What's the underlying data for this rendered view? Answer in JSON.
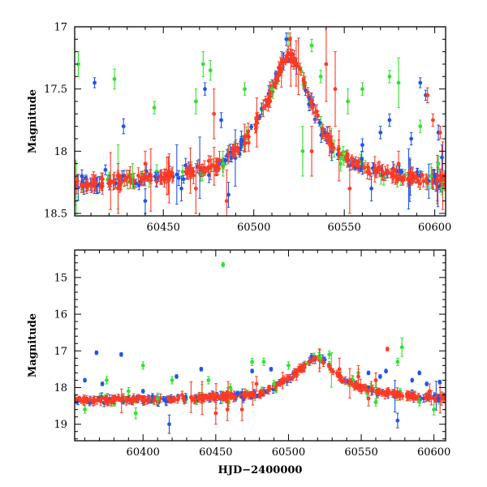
{
  "colors": {
    "green": "#33e033",
    "blue": "#1f55e6",
    "red": "#ff3a24"
  },
  "chart_data": [
    {
      "type": "scatter",
      "title": "",
      "xlabel": "",
      "ylabel": "Magnitude",
      "xlim": [
        60401,
        60606
      ],
      "ylim": [
        18.52,
        17.0
      ],
      "y_inverted": true,
      "xticks": [
        60450,
        60500,
        60550,
        60600
      ],
      "xtick_labels": [
        "60450",
        "60500",
        "60550",
        "60600"
      ],
      "yticks": [
        17,
        17.5,
        18,
        18.5
      ],
      "ytick_labels": [
        "17",
        "17.5",
        "18",
        "18.5"
      ],
      "grid": false,
      "legend": "none",
      "error_bars": true,
      "series": [
        {
          "color": "green",
          "points": [
            [
              60403,
              17.3,
              0.1
            ],
            [
              60423,
              17.42,
              0.08
            ],
            [
              60433,
              18.2,
              0.1
            ],
            [
              60445,
              17.65,
              0.05
            ],
            [
              60468,
              17.6,
              0.1
            ],
            [
              60472,
              17.3,
              0.1
            ],
            [
              60476,
              17.35,
              0.08
            ],
            [
              60483,
              18.1,
              0.1
            ],
            [
              60495,
              17.5,
              0.05
            ],
            [
              60510,
              17.5,
              0.05
            ],
            [
              60519,
              17.1,
              0.05
            ],
            [
              60527,
              18.0,
              0.2
            ],
            [
              60532,
              17.15,
              0.05
            ],
            [
              60537,
              17.4,
              0.05
            ],
            [
              60548,
              18.1,
              0.06
            ],
            [
              60552,
              17.6,
              0.1
            ],
            [
              60560,
              17.5,
              0.05
            ],
            [
              60575,
              17.4,
              0.05
            ],
            [
              60580,
              17.45,
              0.2
            ],
            [
              60592,
              17.8,
              0.05
            ],
            [
              60598,
              18.2,
              0.1
            ],
            [
              60602,
              18.1,
              0.06
            ],
            [
              60604,
              18.3,
              0.05
            ]
          ]
        },
        {
          "color": "blue",
          "points": [
            [
              60405,
              18.2,
              0.05
            ],
            [
              60412,
              17.45,
              0.04
            ],
            [
              60418,
              18.15,
              0.04
            ],
            [
              60428,
              17.8,
              0.06
            ],
            [
              60440,
              18.4,
              0.1
            ],
            [
              60460,
              18.3,
              0.1
            ],
            [
              60473,
              17.5,
              0.05
            ],
            [
              60482,
              17.75,
              0.06
            ],
            [
              60486,
              18.35,
              0.1
            ],
            [
              60518,
              17.1,
              0.05
            ],
            [
              60560,
              17.95,
              0.05
            ],
            [
              60565,
              18.3,
              0.1
            ],
            [
              60570,
              17.85,
              0.05
            ],
            [
              60575,
              17.75,
              0.05
            ],
            [
              60587,
              17.9,
              0.05
            ],
            [
              60592,
              17.45,
              0.04
            ],
            [
              60595,
              17.55,
              0.04
            ],
            [
              60600,
              18.2,
              0.05
            ],
            [
              60602,
              17.85,
              0.06
            ],
            [
              60604,
              18.05,
              0.1
            ]
          ]
        },
        {
          "color": "red",
          "points": [
            [
              60425,
              18.3,
              0.2
            ],
            [
              60440,
              18.1,
              0.1
            ],
            [
              60452,
              18.2,
              0.15
            ],
            [
              60468,
              18.3,
              0.2
            ],
            [
              60478,
              17.7,
              0.2
            ],
            [
              60485,
              18.4,
              0.25
            ],
            [
              60520,
              17.1,
              0.05
            ],
            [
              60532,
              18.0,
              0.2
            ],
            [
              60540,
              17.3,
              0.3
            ],
            [
              60545,
              17.5,
              0.3
            ],
            [
              60553,
              18.3,
              0.2
            ],
            [
              60580,
              18.1,
              0.1
            ],
            [
              60596,
              17.55,
              0.06
            ],
            [
              60599,
              17.75,
              0.05
            ],
            [
              60603,
              17.85,
              0.05
            ]
          ]
        }
      ],
      "model_curve": {
        "x": [
          60401,
          60450,
          60480,
          60490,
          60500,
          60510,
          60515,
          60520,
          60525,
          60530,
          60540,
          60550,
          60565,
          60580,
          60606
        ],
        "y": [
          18.28,
          18.2,
          18.12,
          18.0,
          17.82,
          17.52,
          17.32,
          17.22,
          17.32,
          17.55,
          17.9,
          18.05,
          18.15,
          18.2,
          18.25
        ]
      }
    },
    {
      "type": "scatter",
      "title": "",
      "xlabel": "HJD−2400000",
      "ylabel": "Magnitude",
      "xlim": [
        60353,
        60608
      ],
      "ylim": [
        19.45,
        14.25
      ],
      "y_inverted": true,
      "xticks": [
        60400,
        60450,
        60500,
        60550,
        60600
      ],
      "xtick_labels": [
        "60400",
        "60450",
        "60500",
        "60550",
        "60600"
      ],
      "yticks": [
        15,
        16,
        17,
        18,
        19
      ],
      "ytick_labels": [
        "15",
        "16",
        "17",
        "18",
        "19"
      ],
      "grid": false,
      "legend": "none",
      "error_bars": true,
      "series": [
        {
          "color": "green",
          "points": [
            [
              60360,
              18.6,
              0.1
            ],
            [
              60375,
              17.8,
              0.1
            ],
            [
              60390,
              18.1,
              0.1
            ],
            [
              60395,
              18.7,
              0.15
            ],
            [
              60400,
              17.4,
              0.1
            ],
            [
              60410,
              18.3,
              0.15
            ],
            [
              60420,
              17.8,
              0.1
            ],
            [
              60445,
              17.8,
              0.1
            ],
            [
              60455,
              14.65,
              0.06
            ],
            [
              60460,
              18.0,
              0.1
            ],
            [
              60475,
              17.3,
              0.1
            ],
            [
              60483,
              17.3,
              0.1
            ],
            [
              60490,
              17.9,
              0.1
            ],
            [
              60500,
              17.4,
              0.1
            ],
            [
              60522,
              17.2,
              0.1
            ],
            [
              60528,
              17.1,
              0.1
            ],
            [
              60548,
              17.6,
              0.1
            ],
            [
              60560,
              18.4,
              0.1
            ],
            [
              60575,
              17.3,
              0.1
            ],
            [
              60578,
              16.9,
              0.25
            ],
            [
              60590,
              18.4,
              0.1
            ],
            [
              60600,
              18.6,
              0.15
            ]
          ]
        },
        {
          "color": "blue",
          "points": [
            [
              60360,
              17.8,
              0.05
            ],
            [
              60368,
              17.05,
              0.05
            ],
            [
              60372,
              17.9,
              0.05
            ],
            [
              60385,
              17.1,
              0.05
            ],
            [
              60400,
              18.1,
              0.05
            ],
            [
              60418,
              19.0,
              0.25
            ],
            [
              60423,
              17.7,
              0.05
            ],
            [
              60440,
              17.5,
              0.05
            ],
            [
              60465,
              18.15,
              0.05
            ],
            [
              60475,
              17.55,
              0.05
            ],
            [
              60488,
              17.5,
              0.05
            ],
            [
              60555,
              17.6,
              0.05
            ],
            [
              60563,
              17.7,
              0.05
            ],
            [
              60567,
              17.55,
              0.05
            ],
            [
              60575,
              18.9,
              0.2
            ],
            [
              60585,
              17.8,
              0.05
            ],
            [
              60590,
              17.6,
              0.05
            ],
            [
              60595,
              17.9,
              0.05
            ],
            [
              60603,
              18.3,
              0.1
            ],
            [
              60604,
              17.85,
              0.05
            ]
          ]
        },
        {
          "color": "red",
          "points": [
            [
              60450,
              18.7,
              0.3
            ],
            [
              60458,
              18.6,
              0.3
            ],
            [
              60468,
              18.6,
              0.3
            ],
            [
              60478,
              17.9,
              0.2
            ],
            [
              60535,
              17.5,
              0.3
            ],
            [
              60548,
              17.7,
              0.3
            ],
            [
              60555,
              18.3,
              0.2
            ],
            [
              60560,
              17.8,
              0.2
            ],
            [
              60568,
              16.95,
              0.05
            ],
            [
              60597,
              18.1,
              0.2
            ]
          ]
        }
      ],
      "model_curve": {
        "x": [
          60353,
          60420,
          60460,
          60480,
          60490,
          60500,
          60510,
          60515,
          60520,
          60525,
          60530,
          60540,
          60555,
          60575,
          60608
        ],
        "y": [
          18.35,
          18.3,
          18.25,
          18.15,
          18.0,
          17.75,
          17.45,
          17.25,
          17.2,
          17.3,
          17.5,
          17.85,
          18.05,
          18.2,
          18.3
        ]
      }
    }
  ]
}
